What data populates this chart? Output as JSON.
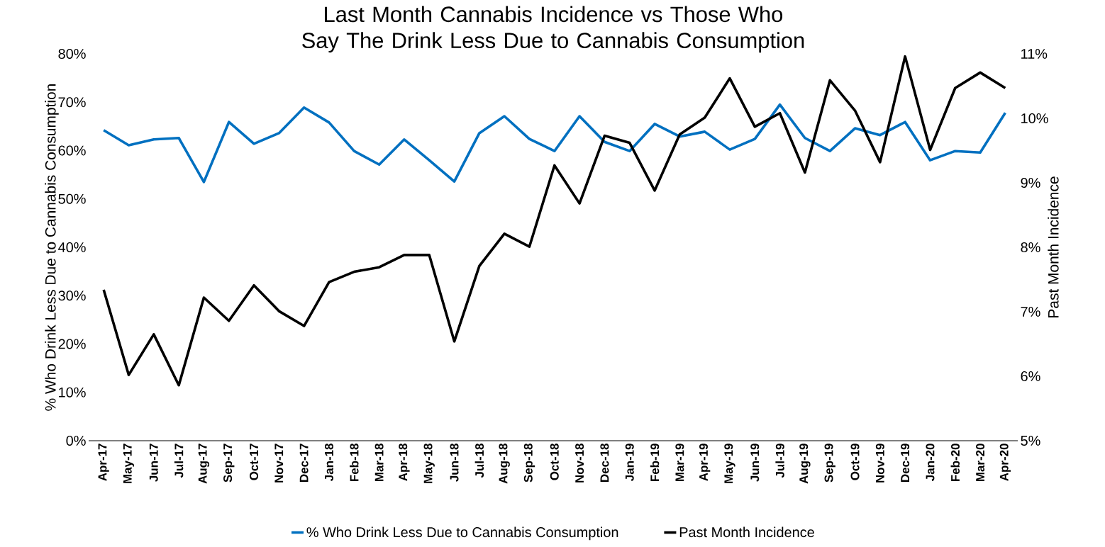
{
  "chart_data": {
    "type": "line",
    "title": "Last Month Cannabis Incidence vs Those Who Say The Drink Less Due to Cannabis Consumption",
    "ylabel": "% Who Drink Less Due to Cannabis Consumption",
    "y2label": "Past Month Incidence",
    "categories": [
      "Apr-17",
      "May-17",
      "Jun-17",
      "Jul-17",
      "Aug-17",
      "Sep-17",
      "Oct-17",
      "Nov-17",
      "Dec-17",
      "Jan-18",
      "Feb-18",
      "Mar-18",
      "Apr-18",
      "May-18",
      "Jun-18",
      "Jul-18",
      "Aug-18",
      "Sep-18",
      "Oct-18",
      "Nov-18",
      "Dec-18",
      "Jan-19",
      "Feb-19",
      "Mar-19",
      "Apr-19",
      "May-19",
      "Jun-19",
      "Jul-19",
      "Aug-19",
      "Sep-19",
      "Oct-19",
      "Nov-19",
      "Dec-19",
      "Jan-20",
      "Feb-20",
      "Mar-20",
      "Apr-20"
    ],
    "series": [
      {
        "name": "% Who Drink Less Due to Cannabis Consumption",
        "color": "#0070c0",
        "values": [
          64.2,
          61.1,
          62.3,
          62.6,
          53.5,
          65.9,
          61.4,
          63.6,
          68.9,
          65.8,
          59.9,
          57.1,
          62.3,
          58.0,
          53.6,
          63.6,
          67.1,
          62.4,
          59.9,
          67.1,
          61.8,
          59.9,
          65.5,
          62.9,
          63.9,
          60.2,
          62.4,
          69.5,
          62.6,
          59.9,
          64.6,
          63.2,
          65.9,
          58.0,
          59.9,
          59.6,
          67.8
        ]
      },
      {
        "name": "Past Month Incidence",
        "color": "#000000",
        "axis": "y2",
        "values": [
          7.34,
          6.02,
          6.65,
          5.86,
          7.22,
          6.86,
          7.41,
          7.01,
          6.78,
          7.46,
          7.62,
          7.69,
          7.88,
          7.88,
          6.54,
          7.71,
          8.21,
          8.01,
          9.27,
          8.68,
          9.73,
          9.62,
          8.88,
          9.75,
          10.01,
          10.62,
          9.87,
          10.08,
          9.16,
          10.59,
          10.12,
          9.32,
          10.96,
          9.51,
          10.47,
          10.71,
          10.47
        ]
      }
    ],
    "ylim": [
      0,
      80
    ],
    "yticks": [
      {
        "value": 0,
        "label": "0%"
      },
      {
        "value": 10,
        "label": "10%"
      },
      {
        "value": 20,
        "label": "20%"
      },
      {
        "value": 30,
        "label": "30%"
      },
      {
        "value": 40,
        "label": "40%"
      },
      {
        "value": 50,
        "label": "50%"
      },
      {
        "value": 60,
        "label": "60%"
      },
      {
        "value": 70,
        "label": "70%"
      },
      {
        "value": 80,
        "label": "80%"
      }
    ],
    "y2lim": [
      5,
      11
    ],
    "y2ticks": [
      {
        "value": 5,
        "label": "5%"
      },
      {
        "value": 6,
        "label": "6%"
      },
      {
        "value": 7,
        "label": "7%"
      },
      {
        "value": 8,
        "label": "8%"
      },
      {
        "value": 9,
        "label": "9%"
      },
      {
        "value": 10,
        "label": "10%"
      },
      {
        "value": 11,
        "label": "11%"
      }
    ],
    "legend": "bottom",
    "grid": false
  }
}
